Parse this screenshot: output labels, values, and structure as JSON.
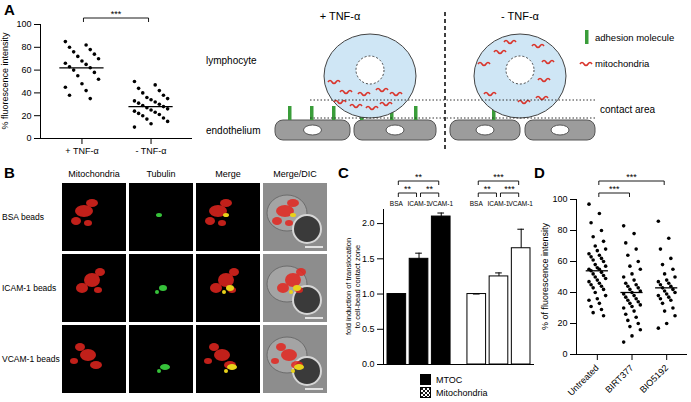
{
  "panel_labels": [
    "A",
    "B",
    "C",
    "D"
  ],
  "chart_data": [
    {
      "type": "scatter",
      "ylabel": "% fluorescence intensity",
      "categories": [
        "+ TNF-α",
        "- TNF-α"
      ],
      "values": [
        [
          85,
          82,
          80,
          78,
          76,
          74,
          72,
          70,
          68,
          66,
          65,
          63,
          62,
          60,
          58,
          55,
          52,
          48,
          45,
          42,
          38,
          35
        ],
        [
          50,
          47,
          44,
          42,
          40,
          38,
          36,
          35,
          34,
          33,
          32,
          31,
          30,
          29,
          28,
          27,
          26,
          25,
          24,
          23,
          22,
          21,
          20,
          18,
          17,
          15,
          13,
          10
        ]
      ],
      "means": [
        62,
        28
      ],
      "ylim": [
        0,
        100
      ],
      "yticks": [
        0,
        20,
        40,
        60,
        80,
        100
      ],
      "significance": [
        {
          "from": "+ TNF-α",
          "to": "- TNF-α",
          "label": "***"
        }
      ]
    },
    {
      "type": "bar",
      "ylabel": "fold induction of translocation to cell-bead contact zone",
      "categories": [
        "BSA",
        "ICAM-1",
        "VCAM-1"
      ],
      "series": [
        {
          "name": "MTOC",
          "color": "#000000",
          "values": [
            1.0,
            1.5,
            2.1
          ],
          "errors": [
            0,
            0.08,
            0.05
          ]
        },
        {
          "name": "Mitochondria",
          "color": "#000000",
          "values": [
            1.0,
            1.25,
            1.65
          ],
          "errors": [
            0,
            0.05,
            0.27
          ]
        }
      ],
      "ylim": [
        0,
        2.2
      ],
      "yticks": [
        {
          "value": 0,
          "label": "0.0"
        },
        0.5,
        {
          "value": 1,
          "label": "1.0"
        },
        1.5,
        {
          "value": 2,
          "label": "2.0"
        }
      ],
      "significance": [
        {
          "series": "MTOC",
          "from": "BSA",
          "to": "ICAM-1",
          "label": "**"
        },
        {
          "series": "MTOC",
          "from": "ICAM-1",
          "to": "VCAM-1",
          "label": "**"
        },
        {
          "series": "MTOC",
          "from": "BSA",
          "to": "VCAM-1",
          "label": "**"
        },
        {
          "series": "Mitochondria",
          "from": "BSA",
          "to": "ICAM-1",
          "label": "**"
        },
        {
          "series": "Mitochondria",
          "from": "ICAM-1",
          "to": "VCAM-1",
          "label": "***"
        },
        {
          "series": "Mitochondria",
          "from": "BSA",
          "to": "VCAM-1",
          "label": "***"
        }
      ]
    },
    {
      "type": "scatter",
      "ylabel": "% of fluorescence intensity",
      "categories": [
        "Untreated",
        "BIRT377",
        "BIO5192"
      ],
      "values": [
        [
          97,
          91,
          85,
          80,
          76,
          73,
          70,
          68,
          67,
          65,
          64,
          63,
          62,
          61,
          60,
          58,
          57,
          56,
          55,
          55,
          54,
          53,
          52,
          51,
          50,
          49,
          48,
          47,
          46,
          45,
          44,
          43,
          42,
          40,
          38,
          36,
          35,
          33,
          31,
          29,
          27,
          25
        ],
        [
          83,
          78,
          72,
          68,
          64,
          60,
          57,
          55,
          52,
          50,
          48,
          46,
          45,
          44,
          43,
          42,
          41,
          40,
          39,
          38,
          37,
          36,
          35,
          34,
          33,
          32,
          31,
          30,
          28,
          26,
          24,
          22,
          20,
          18,
          16,
          12,
          8
        ],
        [
          86,
          75,
          68,
          62,
          58,
          55,
          52,
          50,
          48,
          47,
          46,
          45,
          44,
          43,
          42,
          41,
          40,
          39,
          38,
          37,
          36,
          35,
          33,
          30,
          28,
          25,
          20,
          17
        ]
      ],
      "means": [
        54,
        40,
        43
      ],
      "ylim": [
        0,
        100
      ],
      "yticks": [
        0,
        20,
        40,
        60,
        80,
        100
      ],
      "significance": [
        {
          "from": "Untreated",
          "to": "BIRT377",
          "label": "***"
        },
        {
          "from": "Untreated",
          "to": "BIO5192",
          "label": "***"
        }
      ]
    }
  ],
  "diagram": {
    "conditions": [
      "+ TNF-α",
      "- TNF-α"
    ],
    "cell": "lymphocyte",
    "surface": "endothelium",
    "region": "contact area",
    "legend": [
      {
        "label": "adhesion molecule",
        "color": "#3a9d3a"
      },
      {
        "label": "mitochondria",
        "color": "#d9342b"
      }
    ]
  },
  "micrographs": {
    "columns": [
      "Mitochondria",
      "Tubulin",
      "Merge",
      "Merge/DIC"
    ],
    "rows": [
      "BSA beads",
      "ICAM-1 beads",
      "VCAM-1 beads"
    ]
  }
}
